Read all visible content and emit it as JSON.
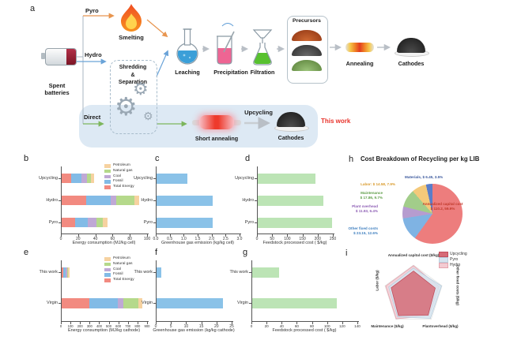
{
  "panels": {
    "a": "a",
    "b": "b",
    "c": "c",
    "d": "d",
    "e": "e",
    "f": "f",
    "g": "g",
    "h": "h",
    "i": "i"
  },
  "colors": {
    "accent_red": "#e8322a",
    "band_blue": "#dde9f4",
    "arrow_orange": "#e8954f",
    "arrow_blue": "#6aa3d8",
    "arrow_green": "#7cb65c",
    "arrow_gray": "#b9bfc6",
    "bar_blue": "#8ac2e8",
    "bar_green": "#bce4b5"
  },
  "process_flow": {
    "spent_batteries": "Spent batteries",
    "pyro": "Pyro",
    "hydro": "Hydro",
    "direct": "Direct",
    "smelting": "Smelting",
    "shredding": {
      "l1": "Shredding",
      "l2": "&",
      "l3": "Separation"
    },
    "leaching": "Leaching",
    "precipitation": "Precipitation",
    "filtration": "Filtration",
    "precursors": "Precursors",
    "annealing": "Annealing",
    "cathodes_top": "Cathodes",
    "short_annealing": "Short annealing",
    "upcycling": "Upcycling",
    "cathodes_bottom": "Cathodes",
    "this_work": "This work"
  },
  "chart_data": [
    {
      "id": "b",
      "panel": "b",
      "type": "bar",
      "stacked": true,
      "xlabel": "Energy consumption (MJ/kg cell)",
      "xlim": [
        0,
        100
      ],
      "xticks": [
        "0",
        "20",
        "40",
        "60",
        "80",
        "100"
      ],
      "categories": [
        "Upcycling",
        "Hydro",
        "Pyro"
      ],
      "series": [
        {
          "name": "Total Energy",
          "color": "#f28a80",
          "values": [
            11,
            28,
            16
          ]
        },
        {
          "name": "Fossil",
          "color": "#82bbe6",
          "values": [
            12,
            29,
            14
          ]
        },
        {
          "name": "Coal",
          "color": "#bfa8d5",
          "values": [
            6,
            6,
            10
          ]
        },
        {
          "name": "Natural gas",
          "color": "#b5d98b",
          "values": [
            5,
            21,
            8
          ]
        },
        {
          "name": "Petroleum",
          "color": "#f6d2a0",
          "values": [
            4,
            6,
            5
          ]
        }
      ],
      "legend": true
    },
    {
      "id": "c",
      "panel": "c",
      "type": "bar",
      "stacked": false,
      "xlabel": "Greenhouse gas emission (kg/kg cell)",
      "xlim": [
        0,
        3
      ],
      "xticks": [
        "0.0",
        "0.5",
        "1.0",
        "1.5",
        "2.0",
        "2.5",
        "3.0"
      ],
      "categories": [
        "Upcycling",
        "Hydro",
        "Pyro"
      ],
      "values": [
        1.1,
        2.0,
        2.0
      ],
      "color": "#8ac2e8"
    },
    {
      "id": "d",
      "panel": "d",
      "type": "bar",
      "stacked": false,
      "xlabel": "Feedstock processed cost ( $/kg)",
      "xlim": [
        0,
        250
      ],
      "xticks": [
        "0",
        "50",
        "100",
        "150",
        "200",
        "250"
      ],
      "categories": [
        "Upcycling",
        "Hydro",
        "Pyro"
      ],
      "values": [
        190,
        215,
        245
      ],
      "color": "#bce4b5"
    },
    {
      "id": "e",
      "panel": "e",
      "type": "bar",
      "stacked": true,
      "xlabel": "Energy consumption (MJ/kg cathode)",
      "xlim": [
        0,
        900
      ],
      "xticks": [
        "0",
        "100",
        "200",
        "300",
        "400",
        "500",
        "600",
        "700",
        "800",
        "900"
      ],
      "categories": [
        "This work",
        "Virgin"
      ],
      "series": [
        {
          "name": "Total Energy",
          "color": "#f28a80",
          "values": [
            14,
            290
          ]
        },
        {
          "name": "Fossil",
          "color": "#82bbe6",
          "values": [
            30,
            300
          ]
        },
        {
          "name": "Coal",
          "color": "#bfa8d5",
          "values": [
            14,
            50
          ]
        },
        {
          "name": "Natural gas",
          "color": "#b5d98b",
          "values": [
            12,
            160
          ]
        },
        {
          "name": "Petroleum",
          "color": "#f6d2a0",
          "values": [
            10,
            40
          ]
        }
      ],
      "legend": true
    },
    {
      "id": "f",
      "panel": "f",
      "type": "bar",
      "stacked": false,
      "xlabel": "Greenhouse gas emission (kg/kg cathode)",
      "xlim": [
        0,
        25
      ],
      "xticks": [
        "0",
        "5",
        "10",
        "15",
        "20",
        "25"
      ],
      "categories": [
        "This work",
        "Virgin"
      ],
      "values": [
        1.5,
        22
      ],
      "color": "#8ac2e8"
    },
    {
      "id": "g",
      "panel": "g",
      "type": "bar",
      "stacked": false,
      "xlabel": "Feedstock processed cost ( $/kg)",
      "xlim": [
        0,
        140
      ],
      "xticks": [
        "0",
        "20",
        "40",
        "60",
        "80",
        "100",
        "120",
        "140"
      ],
      "categories": [
        "This work",
        "Virgin"
      ],
      "values": [
        35,
        112
      ],
      "color": "#bce4b5"
    },
    {
      "id": "h",
      "panel": "h",
      "type": "pie",
      "title": "Cost Breakdown of Recycling per kg LIB",
      "slices": [
        {
          "name": "Annualized capital cost",
          "value_label": "$ 110.2, 59.9%",
          "pct": 59.9,
          "color": "#ed7d7d",
          "text_color": "#c0392b"
        },
        {
          "name": "Other fixed costs",
          "value_label": "$ 23.15, 12.6%",
          "pct": 12.6,
          "color": "#7fb3e3",
          "text_color": "#3f7fbf"
        },
        {
          "name": "Plant overhead",
          "value_label": "$ 11.93, 6.4%",
          "pct": 6.4,
          "color": "#b69ccf",
          "text_color": "#8e5fb5"
        },
        {
          "name": "Maintenance",
          "value_label": "$ 17.86, 9.7%",
          "pct": 9.7,
          "color": "#a2cd8a",
          "text_color": "#5f9e48"
        },
        {
          "name": "Labor:",
          "value_label": "$ 14.58, 7.9%",
          "pct": 7.9,
          "color": "#f4c97a",
          "text_color": "#d99a2b"
        },
        {
          "name": "Materials,",
          "value_label": "$ 6.45, 3.5%",
          "pct": 3.5,
          "color": "#5a7dc9",
          "text_color": "#3d5a9e"
        }
      ]
    },
    {
      "id": "i",
      "panel": "i",
      "type": "radar",
      "axes": [
        "Annualized capital cost ($/kg)",
        "Other fixed costs ($/kg)",
        "Plantoverhead ($/kg)",
        "Maintenance ($/kg)",
        "Labor ($/kg)"
      ],
      "series": [
        {
          "name": "Hydro",
          "fill": "#f3cbd2",
          "stroke": "#e3a3ad",
          "values": [
            0.98,
            0.9,
            0.86,
            0.98,
            0.97
          ]
        },
        {
          "name": "Pyro",
          "fill": "#d6e4ef",
          "stroke": "#b9cfdf",
          "values": [
            0.9,
            0.98,
            0.96,
            0.9,
            0.87
          ]
        },
        {
          "name": "Upcycling",
          "fill": "#d66b77",
          "stroke": "#c24f5d",
          "values": [
            0.8,
            0.76,
            0.83,
            0.85,
            0.78
          ]
        }
      ],
      "legend": [
        "Upcycling",
        "Pyro",
        "Hydro"
      ]
    }
  ]
}
